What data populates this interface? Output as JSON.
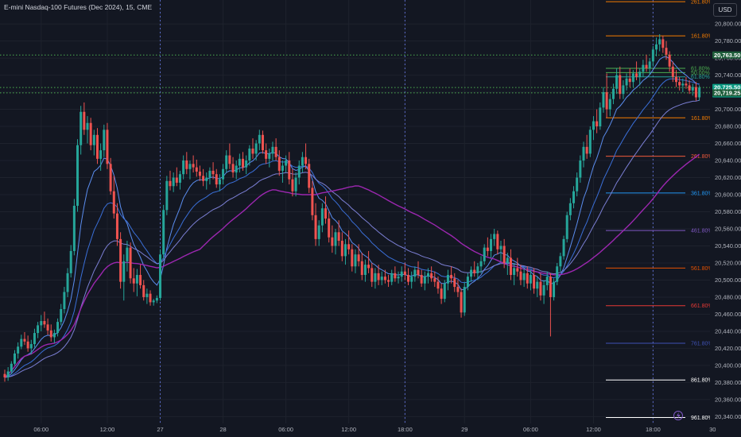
{
  "header": {
    "title": "E-mini Nasdaq-100 Futures (Dec 2024), 15, CME",
    "currency_button": "USD"
  },
  "colors": {
    "background": "#131722",
    "grid": "#1e222d",
    "candle_up": "#26a69a",
    "candle_down": "#ef5350",
    "ema_fast": "#5b8def",
    "ema_mid": "#3a6fd8",
    "ema_slow": "#7b7fd4",
    "sma_long": "#9c27b0",
    "level_green": "#4caf50",
    "session_line": "#5a6ac8"
  },
  "chart_data": {
    "type": "candlestick",
    "title": "E-mini Nasdaq-100 Futures (Dec 2024), 15, CME",
    "y_axis": {
      "ylim": [
        20332,
        20828
      ],
      "ticks": [
        "20,800.00",
        "20,780.00",
        "20,760.00",
        "20,740.00",
        "20,720.00",
        "20,700.00",
        "20,680.00",
        "20,660.00",
        "20,640.00",
        "20,620.00",
        "20,600.00",
        "20,580.00",
        "20,560.00",
        "20,540.00",
        "20,520.00",
        "20,500.00",
        "20,480.00",
        "20,460.00",
        "20,440.00",
        "20,420.00",
        "20,400.00",
        "20,380.00",
        "20,360.00",
        "20,340.00"
      ],
      "tick_values": [
        20800,
        20780,
        20760,
        20740,
        20720,
        20700,
        20680,
        20660,
        20640,
        20620,
        20600,
        20580,
        20560,
        20540,
        20520,
        20500,
        20480,
        20460,
        20440,
        20420,
        20400,
        20380,
        20360,
        20340
      ]
    },
    "x_axis": {
      "ticks": [
        "06:00",
        "12:00",
        "27",
        "28",
        "06:00",
        "12:00",
        "18:00",
        "29",
        "06:00",
        "12:00",
        "18:00",
        "30"
      ],
      "tick_index": [
        11,
        31,
        47,
        66,
        85,
        104,
        121,
        139,
        159,
        178,
        196,
        214
      ]
    },
    "session_breaks": [
      47,
      121,
      196
    ],
    "price_tags": {
      "level_high": {
        "label": "20,763.50",
        "value": 20763.5
      },
      "last_price": {
        "label": "20,725.50",
        "countdown": "06:25",
        "value": 20725.5
      },
      "level_low": {
        "label": "20,719.25",
        "value": 20719.25
      }
    },
    "fib_levels": [
      {
        "label": "261.80%",
        "value": 20826,
        "color": "#f57c00"
      },
      {
        "label": "161.80%",
        "value": 20786,
        "color": "#f57c00"
      },
      {
        "label": "61.80%",
        "value": 20748,
        "color": "#4caf50"
      },
      {
        "label": "50.00%",
        "value": 20743,
        "color": "#4caf50"
      },
      {
        "label": "61.80%",
        "value": 20738,
        "color": "#26a69a"
      },
      {
        "label": "161.80%",
        "value": 20690,
        "color": "#f57c00"
      },
      {
        "label": "261.80%",
        "value": 20645,
        "color": "#f05a3c"
      },
      {
        "label": "361.80%",
        "value": 20602,
        "color": "#2196f3"
      },
      {
        "label": "461.80%",
        "value": 20558,
        "color": "#7e57c2"
      },
      {
        "label": "561.80%",
        "value": 20514,
        "color": "#e65100"
      },
      {
        "label": "661.80%",
        "value": 20470,
        "color": "#e53935"
      },
      {
        "label": "761.80%",
        "value": 20426,
        "color": "#3f51b5"
      },
      {
        "label": "861.80%",
        "value": 20383,
        "color": "#ffffff"
      },
      {
        "label": "961.80%",
        "value": 20339,
        "color": "#ffffff"
      }
    ],
    "candles": [
      [
        20390,
        20395,
        20381,
        20386
      ],
      [
        20386,
        20398,
        20382,
        20393
      ],
      [
        20393,
        20405,
        20390,
        20402
      ],
      [
        20402,
        20418,
        20400,
        20414
      ],
      [
        20414,
        20427,
        20408,
        20422
      ],
      [
        20422,
        20436,
        20419,
        20431
      ],
      [
        20431,
        20439,
        20424,
        20428
      ],
      [
        20428,
        20435,
        20416,
        20420
      ],
      [
        20420,
        20430,
        20413,
        20425
      ],
      [
        20425,
        20443,
        20421,
        20438
      ],
      [
        20438,
        20451,
        20432,
        20447
      ],
      [
        20447,
        20459,
        20440,
        20452
      ],
      [
        20452,
        20463,
        20444,
        20448
      ],
      [
        20448,
        20455,
        20436,
        20441
      ],
      [
        20441,
        20448,
        20428,
        20433
      ],
      [
        20433,
        20442,
        20426,
        20438
      ],
      [
        20438,
        20455,
        20434,
        20451
      ],
      [
        20451,
        20472,
        20447,
        20466
      ],
      [
        20466,
        20492,
        20461,
        20486
      ],
      [
        20486,
        20514,
        20480,
        20508
      ],
      [
        20508,
        20541,
        20503,
        20534
      ],
      [
        20534,
        20595,
        20529,
        20587
      ],
      [
        20587,
        20665,
        20580,
        20658
      ],
      [
        20658,
        20704,
        20647,
        20697
      ],
      [
        20697,
        20708,
        20670,
        20676
      ],
      [
        20676,
        20692,
        20660,
        20684
      ],
      [
        20684,
        20690,
        20652,
        20658
      ],
      [
        20658,
        20676,
        20646,
        20670
      ],
      [
        20670,
        20678,
        20636,
        20642
      ],
      [
        20642,
        20660,
        20628,
        20652
      ],
      [
        20652,
        20682,
        20644,
        20676
      ],
      [
        20676,
        20684,
        20630,
        20636
      ],
      [
        20636,
        20643,
        20600,
        20604
      ],
      [
        20604,
        20622,
        20572,
        20578
      ],
      [
        20578,
        20590,
        20540,
        20548
      ],
      [
        20548,
        20556,
        20490,
        20498
      ],
      [
        20498,
        20530,
        20476,
        20522
      ],
      [
        20522,
        20546,
        20510,
        20538
      ],
      [
        20538,
        20544,
        20496,
        20502
      ],
      [
        20502,
        20514,
        20486,
        20496
      ],
      [
        20496,
        20513,
        20481,
        20506
      ],
      [
        20506,
        20518,
        20490,
        20494
      ],
      [
        20494,
        20500,
        20476,
        20480
      ],
      [
        20480,
        20490,
        20472,
        20484
      ],
      [
        20484,
        20488,
        20470,
        20474
      ],
      [
        20474,
        20478,
        20470,
        20476
      ],
      [
        20476,
        20482,
        20473,
        20479
      ],
      [
        20479,
        20536,
        20476,
        20530
      ],
      [
        20530,
        20588,
        20524,
        20582
      ],
      [
        20582,
        20622,
        20576,
        20616
      ],
      [
        20616,
        20628,
        20605,
        20610
      ],
      [
        20610,
        20626,
        20603,
        20620
      ],
      [
        20620,
        20632,
        20610,
        20614
      ],
      [
        20614,
        20628,
        20606,
        20624
      ],
      [
        20624,
        20646,
        20618,
        20640
      ],
      [
        20640,
        20650,
        20624,
        20630
      ],
      [
        20630,
        20640,
        20618,
        20636
      ],
      [
        20636,
        20646,
        20626,
        20632
      ],
      [
        20632,
        20641,
        20621,
        20627
      ],
      [
        20627,
        20634,
        20616,
        20622
      ],
      [
        20622,
        20630,
        20610,
        20616
      ],
      [
        20616,
        20626,
        20606,
        20620
      ],
      [
        20620,
        20632,
        20612,
        20628
      ],
      [
        20628,
        20638,
        20618,
        20624
      ],
      [
        20624,
        20630,
        20608,
        20612
      ],
      [
        20612,
        20624,
        20604,
        20618
      ],
      [
        20618,
        20636,
        20612,
        20630
      ],
      [
        20630,
        20652,
        20626,
        20646
      ],
      [
        20646,
        20660,
        20630,
        20636
      ],
      [
        20636,
        20644,
        20620,
        20626
      ],
      [
        20626,
        20640,
        20618,
        20634
      ],
      [
        20634,
        20648,
        20626,
        20642
      ],
      [
        20642,
        20650,
        20628,
        20632
      ],
      [
        20632,
        20646,
        20624,
        20640
      ],
      [
        20640,
        20658,
        20634,
        20654
      ],
      [
        20654,
        20666,
        20642,
        20648
      ],
      [
        20648,
        20664,
        20640,
        20660
      ],
      [
        20660,
        20676,
        20652,
        20670
      ],
      [
        20670,
        20675,
        20648,
        20652
      ],
      [
        20652,
        20660,
        20636,
        20642
      ],
      [
        20642,
        20654,
        20632,
        20648
      ],
      [
        20648,
        20662,
        20640,
        20656
      ],
      [
        20656,
        20666,
        20640,
        20644
      ],
      [
        20644,
        20652,
        20622,
        20628
      ],
      [
        20628,
        20640,
        20614,
        20634
      ],
      [
        20634,
        20646,
        20626,
        20640
      ],
      [
        20640,
        20650,
        20612,
        20618
      ],
      [
        20618,
        20630,
        20598,
        20604
      ],
      [
        20604,
        20626,
        20598,
        20620
      ],
      [
        20620,
        20640,
        20612,
        20634
      ],
      [
        20634,
        20650,
        20626,
        20644
      ],
      [
        20644,
        20660,
        20630,
        20636
      ],
      [
        20636,
        20642,
        20602,
        20608
      ],
      [
        20608,
        20616,
        20570,
        20576
      ],
      [
        20576,
        20590,
        20540,
        20548
      ],
      [
        20548,
        20570,
        20540,
        20564
      ],
      [
        20564,
        20590,
        20556,
        20584
      ],
      [
        20584,
        20598,
        20566,
        20572
      ],
      [
        20572,
        20580,
        20544,
        20550
      ],
      [
        20550,
        20564,
        20532,
        20540
      ],
      [
        20540,
        20560,
        20530,
        20556
      ],
      [
        20556,
        20570,
        20540,
        20546
      ],
      [
        20546,
        20556,
        20522,
        20528
      ],
      [
        20528,
        20548,
        20518,
        20542
      ],
      [
        20542,
        20558,
        20530,
        20536
      ],
      [
        20536,
        20542,
        20510,
        20516
      ],
      [
        20516,
        20536,
        20508,
        20530
      ],
      [
        20530,
        20542,
        20516,
        20522
      ],
      [
        20522,
        20532,
        20500,
        20506
      ],
      [
        20506,
        20524,
        20498,
        20518
      ],
      [
        20518,
        20534,
        20508,
        20514
      ],
      [
        20514,
        20520,
        20492,
        20498
      ],
      [
        20498,
        20514,
        20490,
        20508
      ],
      [
        20508,
        20518,
        20494,
        20500
      ],
      [
        20500,
        20510,
        20494,
        20504
      ],
      [
        20504,
        20512,
        20496,
        20500
      ],
      [
        20500,
        20506,
        20492,
        20498
      ],
      [
        20498,
        20512,
        20494,
        20508
      ],
      [
        20508,
        20516,
        20498,
        20502
      ],
      [
        20502,
        20510,
        20496,
        20504
      ],
      [
        20504,
        20516,
        20498,
        20510
      ],
      [
        20510,
        20520,
        20500,
        20506
      ],
      [
        20506,
        20514,
        20494,
        20498
      ],
      [
        20498,
        20510,
        20490,
        20504
      ],
      [
        20504,
        20516,
        20498,
        20512
      ],
      [
        20512,
        20522,
        20502,
        20506
      ],
      [
        20506,
        20512,
        20492,
        20496
      ],
      [
        20496,
        20510,
        20488,
        20504
      ],
      [
        20504,
        20514,
        20496,
        20508
      ],
      [
        20508,
        20516,
        20498,
        20502
      ],
      [
        20502,
        20510,
        20492,
        20498
      ],
      [
        20498,
        20504,
        20484,
        20490
      ],
      [
        20490,
        20496,
        20472,
        20478
      ],
      [
        20478,
        20500,
        20474,
        20496
      ],
      [
        20496,
        20512,
        20488,
        20506
      ],
      [
        20506,
        20516,
        20496,
        20502
      ],
      [
        20502,
        20508,
        20486,
        20492
      ],
      [
        20492,
        20500,
        20480,
        20486
      ],
      [
        20486,
        20490,
        20456,
        20462
      ],
      [
        20462,
        20498,
        20458,
        20492
      ],
      [
        20492,
        20508,
        20488,
        20504
      ],
      [
        20504,
        20516,
        20498,
        20512
      ],
      [
        20512,
        20522,
        20504,
        20508
      ],
      [
        20508,
        20520,
        20500,
        20516
      ],
      [
        20516,
        20528,
        20508,
        20522
      ],
      [
        20522,
        20542,
        20518,
        20538
      ],
      [
        20538,
        20550,
        20528,
        20534
      ],
      [
        20534,
        20554,
        20526,
        20548
      ],
      [
        20548,
        20560,
        20540,
        20554
      ],
      [
        20554,
        20558,
        20530,
        20536
      ],
      [
        20536,
        20546,
        20522,
        20540
      ],
      [
        20540,
        20548,
        20514,
        20520
      ],
      [
        20520,
        20532,
        20506,
        20526
      ],
      [
        20526,
        20536,
        20500,
        20506
      ],
      [
        20506,
        20520,
        20494,
        20514
      ],
      [
        20514,
        20526,
        20504,
        20510
      ],
      [
        20510,
        20518,
        20494,
        20500
      ],
      [
        20500,
        20514,
        20492,
        20508
      ],
      [
        20508,
        20516,
        20490,
        20496
      ],
      [
        20496,
        20512,
        20488,
        20506
      ],
      [
        20506,
        20514,
        20484,
        20490
      ],
      [
        20490,
        20504,
        20480,
        20498
      ],
      [
        20498,
        20508,
        20476,
        20482
      ],
      [
        20482,
        20500,
        20472,
        20494
      ],
      [
        20494,
        20510,
        20488,
        20504
      ],
      [
        20504,
        20508,
        20434,
        20480
      ],
      [
        20480,
        20502,
        20476,
        20498
      ],
      [
        20498,
        20520,
        20494,
        20516
      ],
      [
        20516,
        20532,
        20510,
        20528
      ],
      [
        20528,
        20552,
        20524,
        20548
      ],
      [
        20548,
        20580,
        20544,
        20576
      ],
      [
        20576,
        20596,
        20570,
        20590
      ],
      [
        20590,
        20610,
        20584,
        20604
      ],
      [
        20604,
        20626,
        20598,
        20620
      ],
      [
        20620,
        20646,
        20614,
        20640
      ],
      [
        20640,
        20662,
        20632,
        20656
      ],
      [
        20656,
        20670,
        20642,
        20648
      ],
      [
        20648,
        20680,
        20644,
        20676
      ],
      [
        20676,
        20692,
        20664,
        20686
      ],
      [
        20686,
        20700,
        20672,
        20680
      ],
      [
        20680,
        20708,
        20676,
        20702
      ],
      [
        20702,
        20726,
        20696,
        20720
      ],
      [
        20720,
        20742,
        20690,
        20700
      ],
      [
        20700,
        20718,
        20692,
        20712
      ],
      [
        20712,
        20730,
        20706,
        20724
      ],
      [
        20724,
        20748,
        20718,
        20740
      ],
      [
        20740,
        20750,
        20712,
        20718
      ],
      [
        20718,
        20734,
        20712,
        20728
      ],
      [
        20728,
        20742,
        20722,
        20736
      ],
      [
        20736,
        20748,
        20726,
        20732
      ],
      [
        20732,
        20746,
        20726,
        20742
      ],
      [
        20742,
        20756,
        20734,
        20738
      ],
      [
        20738,
        20748,
        20728,
        20744
      ],
      [
        20744,
        20758,
        20738,
        20752
      ],
      [
        20752,
        20764,
        20744,
        20748
      ],
      [
        20748,
        20760,
        20740,
        20756
      ],
      [
        20756,
        20774,
        20750,
        20770
      ],
      [
        20770,
        20784,
        20762,
        20776
      ],
      [
        20776,
        20788,
        20768,
        20782
      ],
      [
        20782,
        20786,
        20766,
        20772
      ],
      [
        20772,
        20780,
        20758,
        20764
      ],
      [
        20764,
        20768,
        20744,
        20750
      ],
      [
        20750,
        20756,
        20732,
        20738
      ],
      [
        20738,
        20746,
        20726,
        20732
      ],
      [
        20732,
        20738,
        20722,
        20728
      ],
      [
        20728,
        20736,
        20720,
        20730
      ],
      [
        20730,
        20738,
        20724,
        20728
      ],
      [
        20728,
        20734,
        20718,
        20722
      ],
      [
        20722,
        20730,
        20716,
        20726
      ],
      [
        20726,
        20732,
        20710,
        20714
      ],
      [
        20714,
        20728,
        20710,
        20725.5
      ]
    ]
  }
}
